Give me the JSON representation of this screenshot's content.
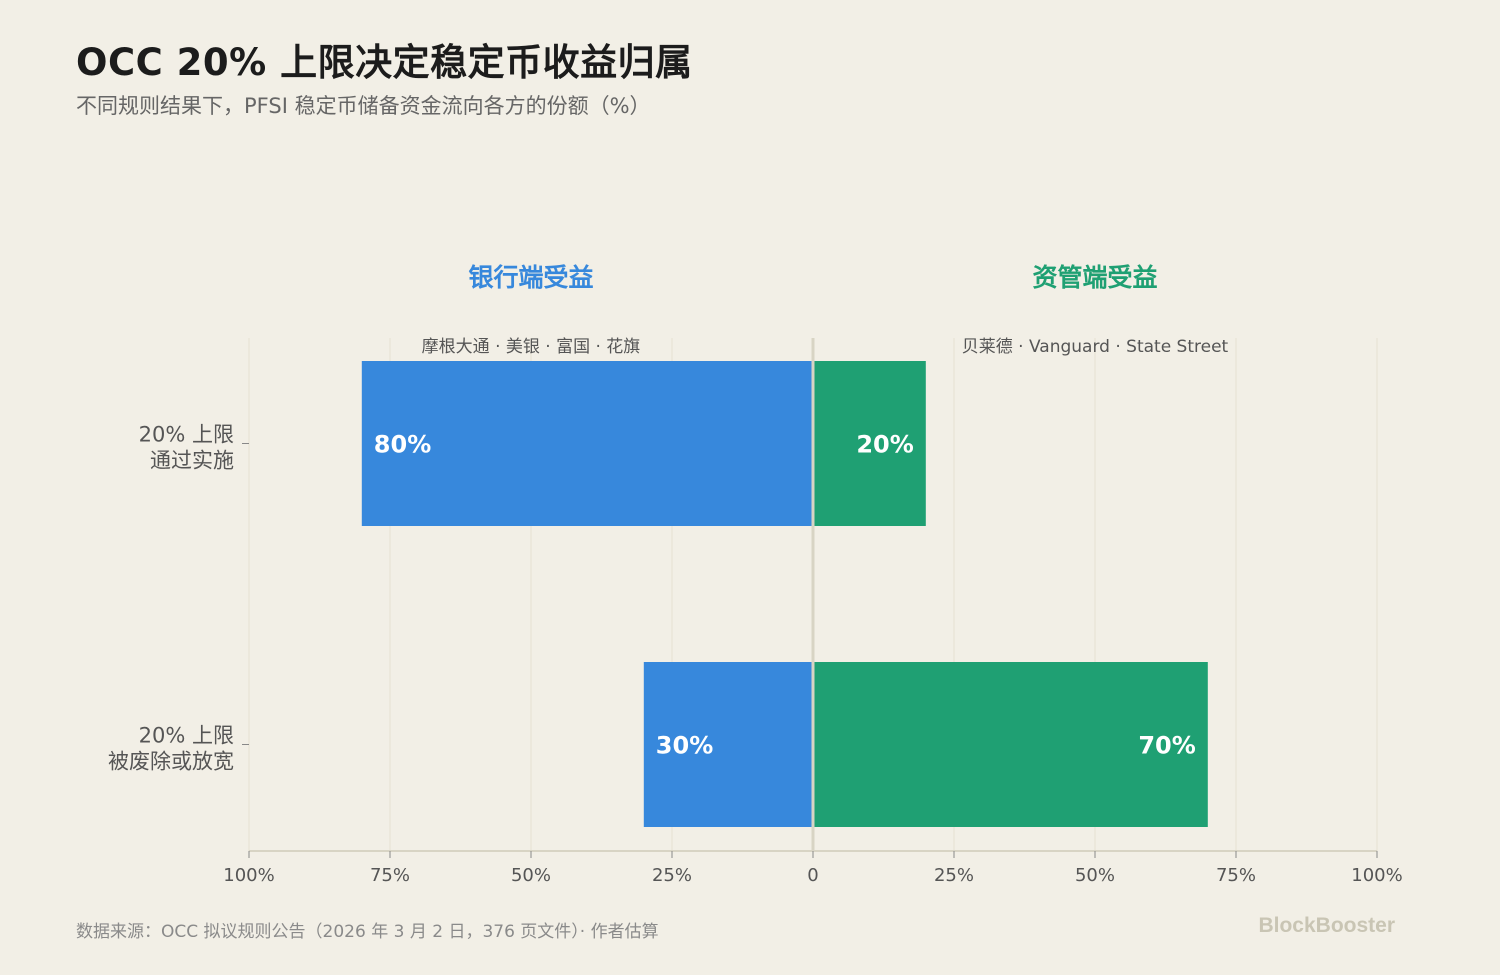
{
  "title": "OCC 20% 上限决定稳定币收益归属",
  "subtitle": "不同规则结果下，PFSI 稳定币储备资金流向各方的份额（%）",
  "footer": {
    "source": "数据来源：OCC 拟议规则公告（2026 年 3 月 2 日，376 页文件）· 作者估算",
    "brand": "BlockBooster"
  },
  "colors": {
    "bank": "#3788dc",
    "asset": "#1fa073",
    "background": "#f2efe6",
    "axis": "#d8d4c4",
    "grid": "#e6e2d3",
    "text": "#555555"
  },
  "chart_data": {
    "type": "bar",
    "orientation": "horizontal-diverging",
    "title": "OCC 20% 上限决定稳定币收益归属",
    "subtitle": "不同规则结果下，PFSI 稳定币储备资金流向各方的份额（%）",
    "left_group": {
      "label": "银行端受益",
      "sublabel": "摩根大通 · 美银 · 富国 · 花旗"
    },
    "right_group": {
      "label": "资管端受益",
      "sublabel": "贝莱德 · Vanguard · State Street"
    },
    "categories": [
      [
        "20% 上限",
        "通过实施"
      ],
      [
        "20% 上限",
        "被废除或放宽"
      ]
    ],
    "series": [
      {
        "key": "bank",
        "values": [
          80,
          30
        ],
        "labels": [
          "80%",
          "30%"
        ]
      },
      {
        "key": "asset",
        "values": [
          20,
          70
        ],
        "labels": [
          "20%",
          "70%"
        ]
      }
    ],
    "xlim": [
      -100,
      100
    ],
    "x_ticks": [
      {
        "value": -100,
        "label": "100%"
      },
      {
        "value": -75,
        "label": "75%"
      },
      {
        "value": -50,
        "label": "50%"
      },
      {
        "value": -25,
        "label": "25%"
      },
      {
        "value": 0,
        "label": "0"
      },
      {
        "value": 25,
        "label": "25%"
      },
      {
        "value": 50,
        "label": "50%"
      },
      {
        "value": 75,
        "label": "75%"
      },
      {
        "value": 100,
        "label": "100%"
      }
    ],
    "grid": true,
    "legend": "none"
  }
}
